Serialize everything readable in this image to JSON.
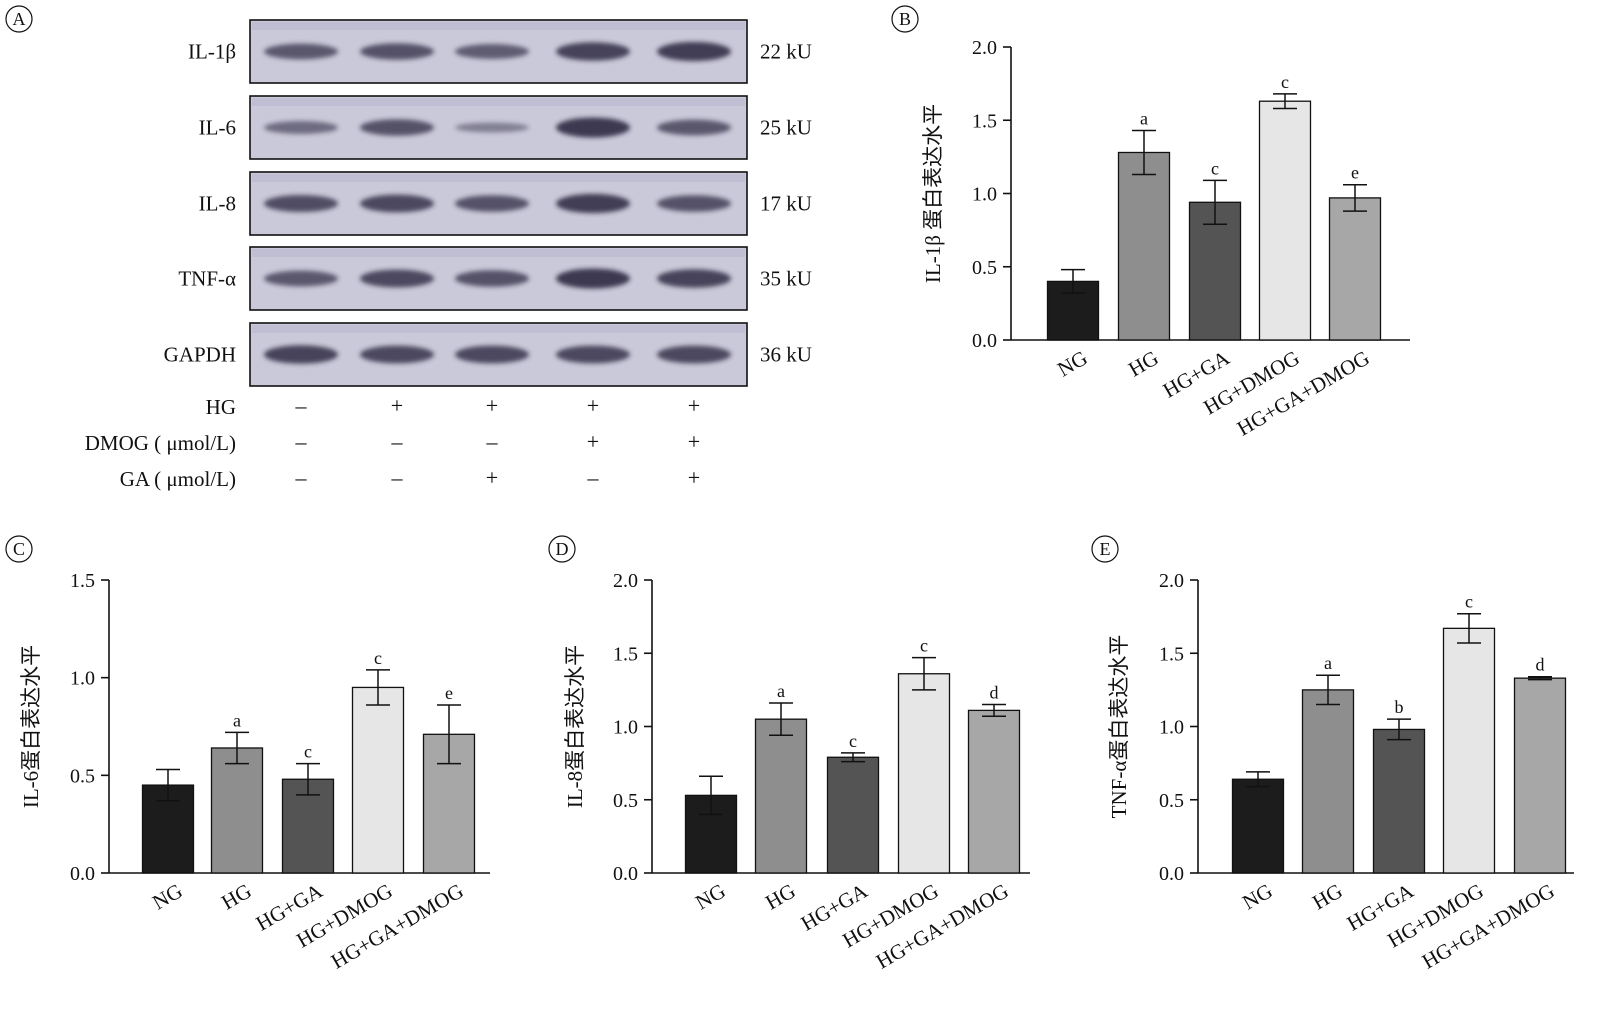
{
  "western_blot": {
    "panel_label": "A",
    "proteins": [
      {
        "name": "IL-1β",
        "size": "22 kU",
        "intensities": [
          0.55,
          0.6,
          0.5,
          0.75,
          0.8
        ]
      },
      {
        "name": "IL-6",
        "size": "25 kU",
        "intensities": [
          0.35,
          0.6,
          0.15,
          0.85,
          0.55
        ]
      },
      {
        "name": "IL-8",
        "size": "17 kU",
        "intensities": [
          0.65,
          0.7,
          0.6,
          0.8,
          0.6
        ]
      },
      {
        "name": "TNF-α",
        "size": "35 kU",
        "intensities": [
          0.55,
          0.7,
          0.6,
          0.85,
          0.75
        ]
      },
      {
        "name": "GAPDH",
        "size": "36 kU",
        "intensities": [
          0.75,
          0.7,
          0.7,
          0.7,
          0.7
        ]
      }
    ],
    "treatments": [
      {
        "label": "HG",
        "values": [
          "–",
          "+",
          "+",
          "+",
          "+"
        ]
      },
      {
        "label": "DMOG ( μmol/L)",
        "values": [
          "–",
          "–",
          "–",
          "+",
          "+"
        ]
      },
      {
        "label": "GA ( μmol/L)",
        "values": [
          "–",
          "–",
          "+",
          "–",
          "+"
        ]
      }
    ]
  },
  "chart_data": [
    {
      "panel": "B",
      "type": "bar",
      "title": "",
      "ylabel": "IL-1β 蛋白表达水平",
      "xlabel": "",
      "categories": [
        "NG",
        "HG",
        "HG+GA",
        "HG+DMOG",
        "HG+GA+DMOG"
      ],
      "values": [
        0.4,
        1.28,
        0.94,
        1.63,
        0.97
      ],
      "errors": [
        0.08,
        0.15,
        0.15,
        0.05,
        0.09
      ],
      "significance": [
        "",
        "a",
        "c",
        "c",
        "e"
      ],
      "ylim": [
        0,
        2.0
      ],
      "ytick_labels": [
        "0.0",
        "0.5",
        "1.0",
        "1.5",
        "2.0"
      ]
    },
    {
      "panel": "C",
      "type": "bar",
      "title": "",
      "ylabel": "IL-6蛋白表达水平",
      "xlabel": "",
      "categories": [
        "NG",
        "HG",
        "HG+GA",
        "HG+DMOG",
        "HG+GA+DMOG"
      ],
      "values": [
        0.45,
        0.64,
        0.48,
        0.95,
        0.71
      ],
      "errors": [
        0.08,
        0.08,
        0.08,
        0.09,
        0.15
      ],
      "significance": [
        "",
        "a",
        "c",
        "c",
        "e"
      ],
      "ylim": [
        0,
        1.5
      ],
      "ytick_labels": [
        "0.0",
        "0.5",
        "1.0",
        "1.5"
      ]
    },
    {
      "panel": "D",
      "type": "bar",
      "title": "",
      "ylabel": "IL-8蛋白表达水平",
      "xlabel": "",
      "categories": [
        "NG",
        "HG",
        "HG+GA",
        "HG+DMOG",
        "HG+GA+DMOG"
      ],
      "values": [
        0.53,
        1.05,
        0.79,
        1.36,
        1.11
      ],
      "errors": [
        0.13,
        0.11,
        0.03,
        0.11,
        0.04
      ],
      "significance": [
        "",
        "a",
        "c",
        "c",
        "d"
      ],
      "ylim": [
        0,
        2.0
      ],
      "ytick_labels": [
        "0.0",
        "0.5",
        "1.0",
        "1.5",
        "2.0"
      ]
    },
    {
      "panel": "E",
      "type": "bar",
      "title": "",
      "ylabel": "TNF-α蛋白表达水平",
      "xlabel": "",
      "categories": [
        "NG",
        "HG",
        "HG+GA",
        "HG+DMOG",
        "HG+GA+DMOG"
      ],
      "values": [
        0.64,
        1.25,
        0.98,
        1.67,
        1.33
      ],
      "errors": [
        0.05,
        0.1,
        0.07,
        0.1,
        0.01
      ],
      "significance": [
        "",
        "a",
        "b",
        "c",
        "d"
      ],
      "ylim": [
        0,
        2.0
      ],
      "ytick_labels": [
        "0.0",
        "0.5",
        "1.0",
        "1.5",
        "2.0"
      ]
    }
  ],
  "colors": {
    "bars": [
      "#1c1c1c",
      "#8e8e8e",
      "#545454",
      "#e6e6e6",
      "#a7a7a7"
    ],
    "axis": "#111111",
    "blot_bg": "#cac9d9",
    "band": "#25233a"
  }
}
